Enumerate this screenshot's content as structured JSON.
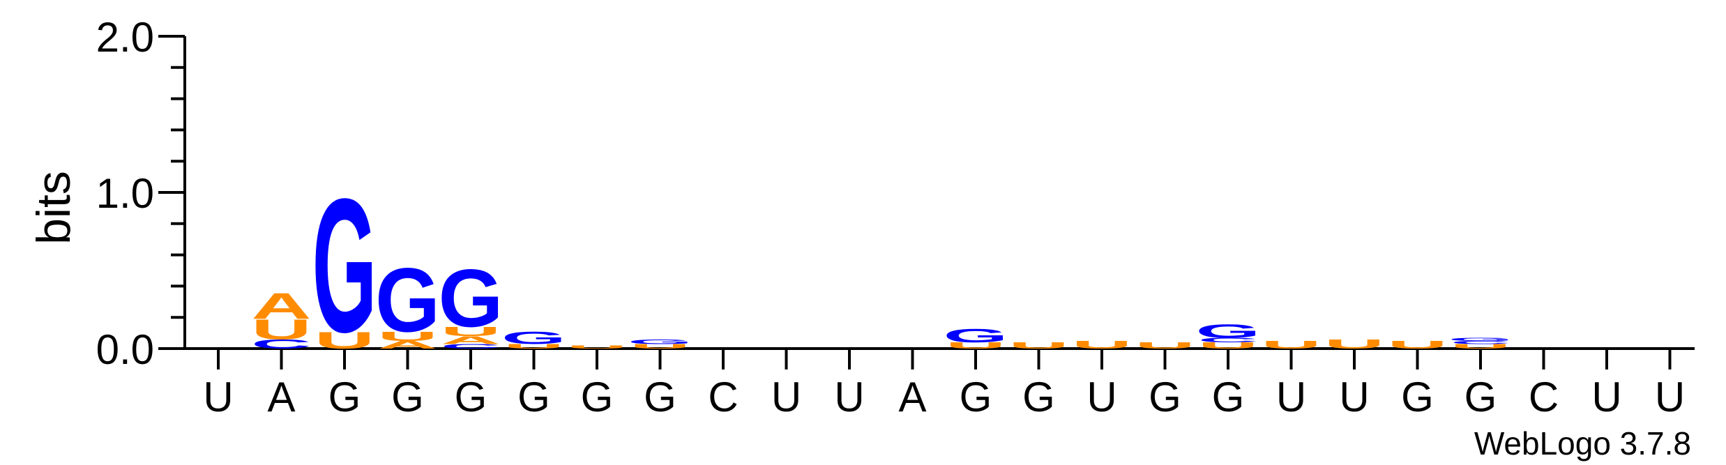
{
  "chart_data": {
    "type": "sequence-logo",
    "ylabel": "bits",
    "ylim": [
      0,
      2.0
    ],
    "yticks": [
      "0.0",
      "1.0",
      "2.0"
    ],
    "positions": [
      "U",
      "A",
      "G",
      "G",
      "G",
      "G",
      "G",
      "G",
      "C",
      "U",
      "U",
      "A",
      "G",
      "G",
      "U",
      "G",
      "G",
      "U",
      "U",
      "G",
      "G",
      "C",
      "U",
      "U"
    ],
    "colors": {
      "G": "#0000ff",
      "U": "#ff8c00",
      "A": "#ff8c00",
      "C": "#0000ff"
    },
    "stacks": [
      [],
      [
        {
          "letter": "C",
          "height": 0.06
        },
        {
          "letter": "U",
          "height": 0.13
        },
        {
          "letter": "A",
          "height": 0.17
        }
      ],
      [
        {
          "letter": "U",
          "height": 0.11
        },
        {
          "letter": "G",
          "height": 0.88
        }
      ],
      [
        {
          "letter": "A",
          "height": 0.05
        },
        {
          "letter": "U",
          "height": 0.06
        },
        {
          "letter": "G",
          "height": 0.42
        }
      ],
      [
        {
          "letter": "C",
          "height": 0.03
        },
        {
          "letter": "A",
          "height": 0.05
        },
        {
          "letter": "U",
          "height": 0.06
        },
        {
          "letter": "G",
          "height": 0.38
        }
      ],
      [
        {
          "letter": "U",
          "height": 0.03
        },
        {
          "letter": "G",
          "height": 0.08
        }
      ],
      [
        {
          "letter": "U",
          "height": 0.02
        }
      ],
      [
        {
          "letter": "U",
          "height": 0.03
        },
        {
          "letter": "G",
          "height": 0.03
        }
      ],
      [],
      [],
      [],
      [],
      [
        {
          "letter": "U",
          "height": 0.04
        },
        {
          "letter": "G",
          "height": 0.09
        }
      ],
      [
        {
          "letter": "U",
          "height": 0.04
        }
      ],
      [
        {
          "letter": "U",
          "height": 0.05
        }
      ],
      [
        {
          "letter": "U",
          "height": 0.04
        }
      ],
      [
        {
          "letter": "U",
          "height": 0.04
        },
        {
          "letter": "C",
          "height": 0.03
        },
        {
          "letter": "G",
          "height": 0.09
        }
      ],
      [
        {
          "letter": "U",
          "height": 0.05
        }
      ],
      [
        {
          "letter": "U",
          "height": 0.06
        }
      ],
      [
        {
          "letter": "U",
          "height": 0.05
        }
      ],
      [
        {
          "letter": "U",
          "height": 0.03
        },
        {
          "letter": "C",
          "height": 0.02
        },
        {
          "letter": "G",
          "height": 0.02
        }
      ],
      [],
      [],
      []
    ]
  },
  "credit": "WebLogo 3.7.8"
}
